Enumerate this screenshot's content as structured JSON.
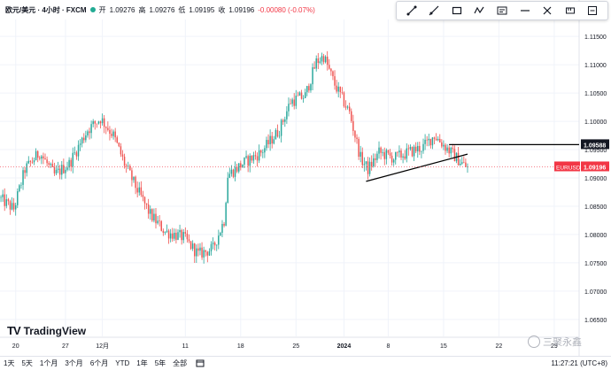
{
  "header": {
    "symbol_label": "欧元/美元 · 4小时 · FXCM",
    "open_label": "开",
    "open_value": "1.09276",
    "high_label": "高",
    "high_value": "1.09276",
    "low_label": "低",
    "low_value": "1.09195",
    "close_label": "收",
    "close_value": "1.09196",
    "change_value": "-0.00080 (-0.07%)",
    "status_color": "#22ab94"
  },
  "toolbar": {
    "icons": [
      "trend-line-icon",
      "ray-icon",
      "rectangle-icon",
      "pattern-icon",
      "text-icon",
      "horizontal-line-icon",
      "brush-icon",
      "measure-icon",
      "more-icon"
    ]
  },
  "bottom": {
    "ranges": [
      "1天",
      "5天",
      "1个月",
      "3个月",
      "6个月",
      "YTD",
      "1年",
      "5年",
      "全部"
    ],
    "clock": "11:27:21 (UTC+8)"
  },
  "logo": {
    "text": "TradingView"
  },
  "watermark": {
    "text": "三聚永鑫"
  },
  "chart_data": {
    "type": "candlestick",
    "symbol": "EUR/USD",
    "timeframe": "4H",
    "ylim": [
      1.062,
      1.118
    ],
    "y_ticks": [
      "1.11500",
      "1.11000",
      "1.10500",
      "1.10000",
      "1.09500",
      "1.09000",
      "1.08500",
      "1.08000",
      "1.07500",
      "1.07000",
      "1.06500"
    ],
    "y_tick_values": [
      1.115,
      1.11,
      1.105,
      1.1,
      1.095,
      1.09,
      1.085,
      1.08,
      1.075,
      1.07,
      1.065
    ],
    "x_ticks": [
      "20",
      "27",
      "12月",
      "11",
      "18",
      "25",
      "2024",
      "8",
      "15",
      "22",
      "29"
    ],
    "x_tick_index": [
      8,
      35,
      55,
      100,
      130,
      160,
      186,
      210,
      240,
      270,
      300
    ],
    "colors": {
      "up": "#26a69a",
      "down": "#ef5350"
    },
    "current_price": {
      "label": "EURUSD",
      "value": 1.09196,
      "text": "1.09196",
      "color": "#f23645"
    },
    "horizontal_line": {
      "value": 1.09588,
      "text": "1.09588",
      "start_index": 243
    },
    "trend_line": {
      "start": [
        198,
        1.0894
      ],
      "end": [
        253,
        1.0942
      ]
    },
    "anchors": [
      [
        0,
        1.0865
      ],
      [
        8,
        1.0845
      ],
      [
        14,
        1.0915
      ],
      [
        22,
        1.0945
      ],
      [
        30,
        1.0905
      ],
      [
        38,
        1.0925
      ],
      [
        48,
        1.0985
      ],
      [
        55,
        1.1005
      ],
      [
        62,
        1.0975
      ],
      [
        68,
        1.0925
      ],
      [
        74,
        1.0885
      ],
      [
        82,
        1.0835
      ],
      [
        90,
        1.0805
      ],
      [
        100,
        1.0795
      ],
      [
        108,
        1.0765
      ],
      [
        116,
        1.0775
      ],
      [
        122,
        1.0825
      ],
      [
        124,
        1.0905
      ],
      [
        132,
        1.0925
      ],
      [
        142,
        1.0945
      ],
      [
        152,
        1.0985
      ],
      [
        158,
        1.1035
      ],
      [
        166,
        1.1045
      ],
      [
        172,
        1.1105
      ],
      [
        176,
        1.1115
      ],
      [
        182,
        1.1065
      ],
      [
        190,
        1.1015
      ],
      [
        196,
        1.0935
      ],
      [
        200,
        1.0915
      ],
      [
        206,
        1.0945
      ],
      [
        214,
        1.0935
      ],
      [
        222,
        1.0945
      ],
      [
        230,
        1.0955
      ],
      [
        236,
        1.0975
      ],
      [
        242,
        1.0955
      ],
      [
        248,
        1.0935
      ],
      [
        253,
        1.092
      ]
    ],
    "candle_count": 254,
    "x_axis_extra_slots": 60
  }
}
